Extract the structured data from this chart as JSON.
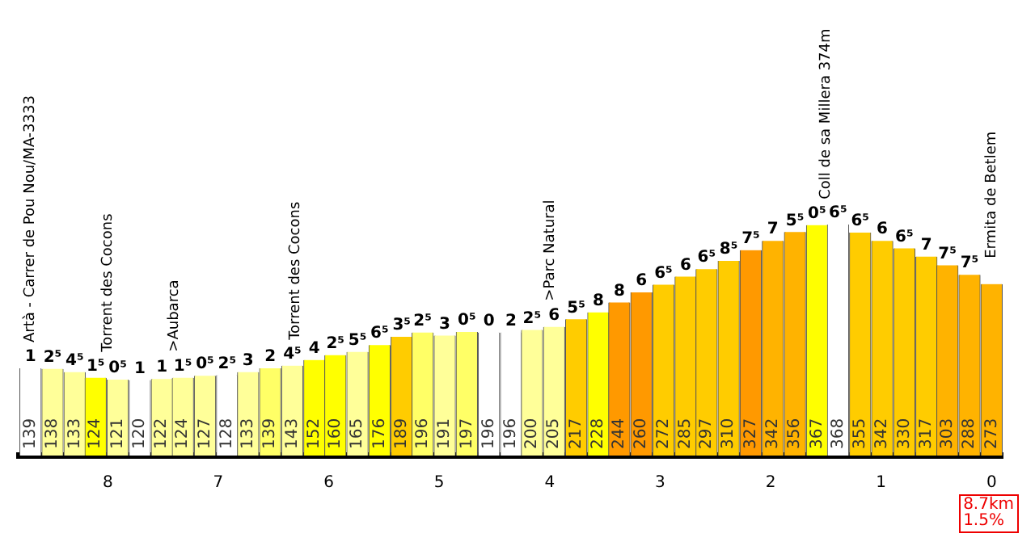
{
  "chart_data": {
    "type": "bar",
    "x": [
      8.7,
      8.5,
      8.3,
      8.11,
      7.91,
      7.71,
      7.51,
      7.32,
      7.12,
      6.92,
      6.73,
      6.53,
      6.33,
      6.13,
      5.94,
      5.74,
      5.54,
      5.34,
      5.15,
      4.95,
      4.75,
      4.55,
      4.35,
      4.16,
      3.96,
      3.76,
      3.56,
      3.37,
      3.17,
      2.97,
      2.77,
      2.58,
      2.38,
      2.18,
      1.98,
      1.78,
      1.58,
      1.39,
      1.19,
      0.99,
      0.79,
      0.59,
      0.4,
      0.2,
      0
    ],
    "series": [
      {
        "color": "#555555",
        "values": [
          139,
          138,
          133,
          124,
          121,
          120,
          122,
          124,
          127,
          128,
          133,
          139,
          143,
          152,
          160,
          165,
          176,
          189,
          196,
          191,
          197,
          196,
          196,
          200,
          205,
          217,
          228,
          244,
          260,
          272,
          285,
          297,
          310,
          327,
          342,
          356,
          367,
          368,
          355,
          342,
          330,
          317,
          303,
          288,
          273
        ],
        "colors": [
          "#ffffff",
          "#ffff99",
          "#ffff99",
          "#ffff00",
          "#ffff99",
          "#ffffff",
          "#ffff99",
          "#ffff99",
          "#ffff99",
          "#ffffff",
          "#ffff99",
          "#ffff66",
          "#ffff99",
          "#ffff00",
          "#ffff00",
          "#ffff99",
          "#ffff00",
          "#ffcc00",
          "#ffff66",
          "#ffff99",
          "#ffff66",
          "#ffffff",
          "#ffffff",
          "#ffff99",
          "#ffff99",
          "#ffcc00",
          "#ffff00",
          "#ff9900",
          "#ff9900",
          "#ffcc00",
          "#ffcc00",
          "#ffcc00",
          "#ffcc00",
          "#ff9900",
          "#ffb300",
          "#ffb300",
          "#ffff00",
          "#ffffff",
          "#ffcc00",
          "#ffcc00",
          "#ffcc00",
          "#ffcc00",
          "#ffb300",
          "#ffb300",
          "#ffb300"
        ]
      }
    ],
    "data_labels": true,
    "xlim": [
      8.8,
      -0.1
    ],
    "xticks": [
      0,
      1,
      2,
      3,
      4,
      5,
      6,
      7,
      8
    ],
    "tick_labels": "x",
    "grid": false,
    "legend": false,
    "annotations": [
      {
        "text": "Artà - Carrer de Pou Nou/MA-3333",
        "x": 8.7,
        "y": 139
      },
      {
        "text": "Torrent des Cocons",
        "x": 8.0,
        "y": 124
      },
      {
        "text": ">Aubarca",
        "x": 7.4,
        "y": 124
      },
      {
        "text": "Torrent des Cocons",
        "x": 6.3,
        "y": 143
      },
      {
        "text": ">Parc Natural",
        "x": 4.0,
        "y": 205
      },
      {
        "text": "Coll de sa Millera 374m",
        "x": 1.5,
        "y": 367
      },
      {
        "text": "Ermita de Betlem",
        "x": 0,
        "y": 273
      },
      {
        "text": "1",
        "x": 8.7,
        "y": 139
      },
      {
        "text": "2⁵",
        "x": 8.5,
        "y": 138
      },
      {
        "text": "4⁵",
        "x": 8.3,
        "y": 133
      },
      {
        "text": "1⁵",
        "x": 8.11,
        "y": 124
      },
      {
        "text": "0⁵",
        "x": 7.91,
        "y": 121
      },
      {
        "text": "1",
        "x": 7.71,
        "y": 120
      },
      {
        "text": "1",
        "x": 7.51,
        "y": 122
      },
      {
        "text": "1⁵",
        "x": 7.32,
        "y": 124
      },
      {
        "text": "0⁵",
        "x": 7.12,
        "y": 127
      },
      {
        "text": "2⁵",
        "x": 6.92,
        "y": 128
      },
      {
        "text": "3",
        "x": 6.73,
        "y": 133
      },
      {
        "text": "2",
        "x": 6.53,
        "y": 139
      },
      {
        "text": "4⁵",
        "x": 6.33,
        "y": 143
      },
      {
        "text": "4",
        "x": 6.13,
        "y": 152
      },
      {
        "text": "2⁵",
        "x": 5.94,
        "y": 160
      },
      {
        "text": "5⁵",
        "x": 5.74,
        "y": 165
      },
      {
        "text": "6⁵",
        "x": 5.54,
        "y": 176
      },
      {
        "text": "3⁵",
        "x": 5.34,
        "y": 189
      },
      {
        "text": "2⁵",
        "x": 5.15,
        "y": 196
      },
      {
        "text": "3",
        "x": 4.95,
        "y": 191
      },
      {
        "text": "0⁵",
        "x": 4.75,
        "y": 197
      },
      {
        "text": "0",
        "x": 4.55,
        "y": 196
      },
      {
        "text": "2",
        "x": 4.35,
        "y": 196
      },
      {
        "text": "2⁵",
        "x": 4.16,
        "y": 200
      },
      {
        "text": "6",
        "x": 3.96,
        "y": 205
      },
      {
        "text": "5⁵",
        "x": 3.76,
        "y": 217
      },
      {
        "text": "8",
        "x": 3.56,
        "y": 228
      },
      {
        "text": "8",
        "x": 3.37,
        "y": 244
      },
      {
        "text": "6",
        "x": 3.17,
        "y": 260
      },
      {
        "text": "6⁵",
        "x": 2.97,
        "y": 272
      },
      {
        "text": "6",
        "x": 2.77,
        "y": 285
      },
      {
        "text": "6⁵",
        "x": 2.58,
        "y": 297
      },
      {
        "text": "8⁵",
        "x": 2.38,
        "y": 310
      },
      {
        "text": "7⁵",
        "x": 2.18,
        "y": 327
      },
      {
        "text": "7",
        "x": 1.98,
        "y": 342
      },
      {
        "text": "5⁵",
        "x": 1.78,
        "y": 356
      },
      {
        "text": "0⁵",
        "x": 1.58,
        "y": 367
      },
      {
        "text": "6⁵",
        "x": 1.39,
        "y": 368
      },
      {
        "text": "6⁵",
        "x": 1.19,
        "y": 355
      },
      {
        "text": "6",
        "x": 0.99,
        "y": 342
      },
      {
        "text": "6⁵",
        "x": 0.79,
        "y": 330
      },
      {
        "text": "7",
        "x": 0.59,
        "y": 317
      },
      {
        "text": "7⁵",
        "x": 0.4,
        "y": 303
      },
      {
        "text": "7⁵",
        "x": 0.2,
        "y": 288
      },
      "8.7km 1.5%"
    ]
  }
}
